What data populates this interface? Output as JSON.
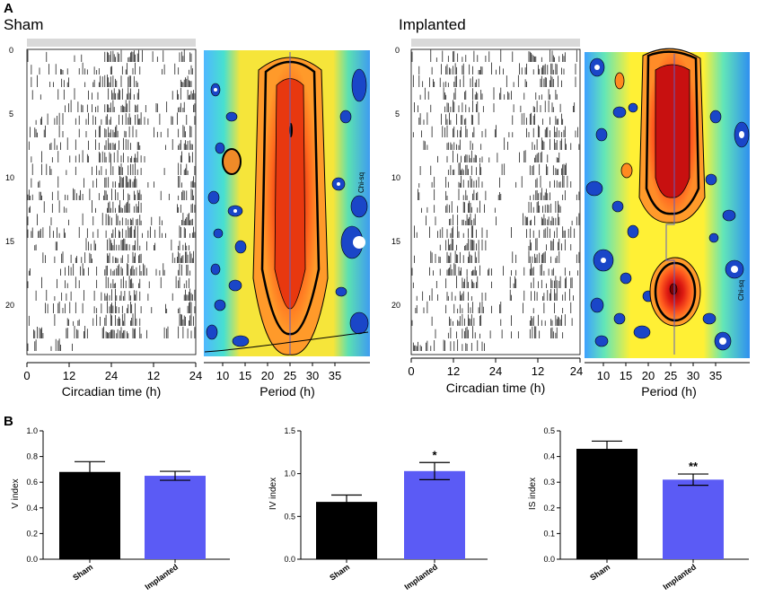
{
  "panel_a": {
    "label": "A",
    "groups": [
      {
        "title": "Sham",
        "actogram": {
          "xlabel": "Circadian time (h)",
          "xticks": [
            "0",
            "12",
            "24",
            "12",
            "24"
          ],
          "yticks": [
            "0",
            "5",
            "10",
            "15",
            "20"
          ]
        },
        "periodogram": {
          "xlabel": "Period (h)",
          "xticks": [
            "10",
            "15",
            "20",
            "25",
            "30",
            "35"
          ],
          "side_text": "Chi-sq"
        }
      },
      {
        "title": "Implanted",
        "actogram": {
          "xlabel": "Circadian time (h)",
          "xticks": [
            "0",
            "12",
            "24",
            "12",
            "24"
          ],
          "yticks": [
            "0",
            "5",
            "10",
            "15",
            "20"
          ]
        },
        "periodogram": {
          "xlabel": "Period (h)",
          "xticks": [
            "10",
            "15",
            "20",
            "25",
            "30",
            "35"
          ],
          "side_text": "Chi-sq"
        }
      }
    ]
  },
  "panel_b": {
    "label": "B"
  },
  "colors": {
    "sham": "#000000",
    "implanted": "#5b5bf5"
  },
  "chart_data": [
    {
      "type": "bar",
      "categories": [
        "Sham",
        "Implanted"
      ],
      "values": [
        0.68,
        0.65
      ],
      "errors": [
        0.08,
        0.035
      ],
      "significance": [
        "",
        ""
      ],
      "ylabel": "V index",
      "ylim": [
        0,
        1.0
      ],
      "yticks": [
        "0.0",
        "0.2",
        "0.4",
        "0.6",
        "0.8",
        "1.0"
      ]
    },
    {
      "type": "bar",
      "categories": [
        "Sham",
        "Implanted"
      ],
      "values": [
        0.67,
        1.03
      ],
      "errors": [
        0.08,
        0.1
      ],
      "significance": [
        "",
        "*"
      ],
      "ylabel": "IV index",
      "ylim": [
        0,
        1.5
      ],
      "yticks": [
        "0.0",
        "0.5",
        "1.0",
        "1.5"
      ]
    },
    {
      "type": "bar",
      "categories": [
        "Sham",
        "Implanted"
      ],
      "values": [
        0.43,
        0.31
      ],
      "errors": [
        0.03,
        0.022
      ],
      "significance": [
        "",
        "**"
      ],
      "ylabel": "IS index",
      "ylim": [
        0,
        0.5
      ],
      "yticks": [
        "0.0",
        "0.1",
        "0.2",
        "0.3",
        "0.4",
        "0.5"
      ]
    }
  ]
}
